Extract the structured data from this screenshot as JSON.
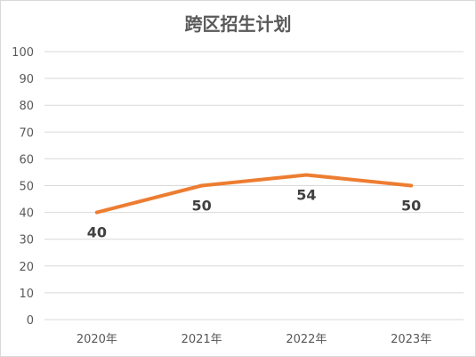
{
  "chart_data": {
    "type": "line",
    "title": "跨区招生计划",
    "categories": [
      "2020年",
      "2021年",
      "2022年",
      "2023年"
    ],
    "series": [
      {
        "values": [
          40,
          50,
          54,
          50
        ]
      }
    ],
    "ylim": [
      0,
      100
    ],
    "yticks": [
      0,
      10,
      20,
      30,
      40,
      50,
      60,
      70,
      80,
      90,
      100
    ],
    "grid": true,
    "legend": "none",
    "data_labels": true,
    "line_color": "#ED7D31",
    "grid_color": "#D9D9D9",
    "text_color": "#595959"
  }
}
